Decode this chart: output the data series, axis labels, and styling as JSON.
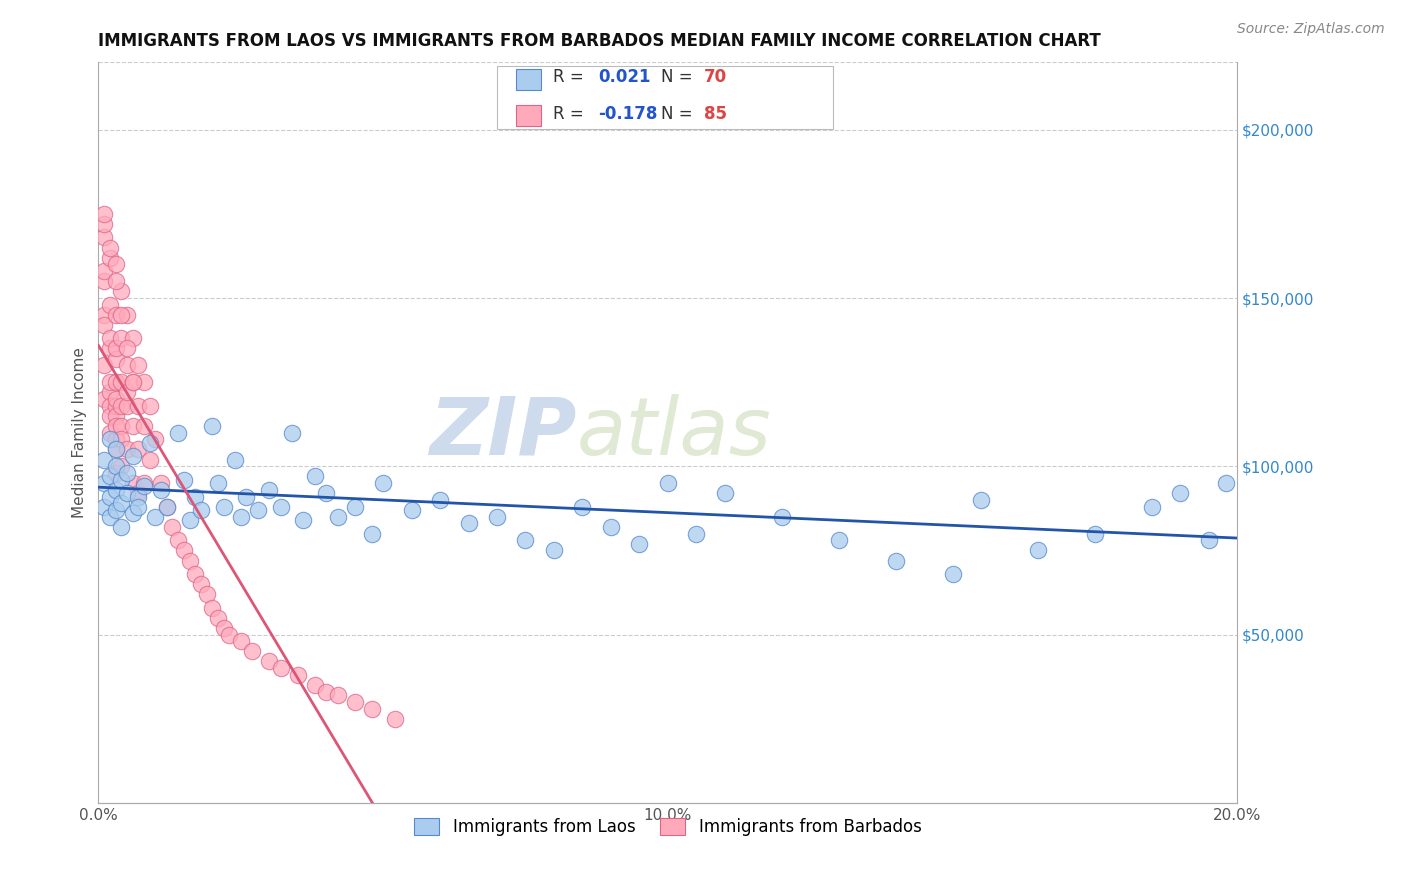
{
  "title": "IMMIGRANTS FROM LAOS VS IMMIGRANTS FROM BARBADOS MEDIAN FAMILY INCOME CORRELATION CHART",
  "source_text": "Source: ZipAtlas.com",
  "ylabel": "Median Family Income",
  "xlim": [
    0.0,
    0.2
  ],
  "ylim": [
    0,
    220000
  ],
  "xticks": [
    0.0,
    0.05,
    0.1,
    0.15,
    0.2
  ],
  "xticklabels": [
    "0.0%",
    "",
    "10.0%",
    "",
    "20.0%"
  ],
  "ytick_positions": [
    50000,
    100000,
    150000,
    200000
  ],
  "ytick_labels": [
    "$50,000",
    "$100,000",
    "$150,000",
    "$200,000"
  ],
  "series_laos": {
    "color": "#aaccee",
    "edge_color": "#5588cc",
    "label": "Immigrants from Laos"
  },
  "series_barbados": {
    "color": "#ffaabb",
    "edge_color": "#dd6688",
    "label": "Immigrants from Barbados"
  },
  "legend_R_laos": "0.021",
  "legend_N_laos": "70",
  "legend_R_barbados": "-0.178",
  "legend_N_barbados": "85",
  "watermark_zip": "ZIP",
  "watermark_atlas": "atlas",
  "background_color": "#ffffff",
  "laos_x": [
    0.001,
    0.001,
    0.001,
    0.002,
    0.002,
    0.002,
    0.002,
    0.003,
    0.003,
    0.003,
    0.003,
    0.004,
    0.004,
    0.004,
    0.005,
    0.005,
    0.006,
    0.006,
    0.007,
    0.007,
    0.008,
    0.009,
    0.01,
    0.011,
    0.012,
    0.014,
    0.015,
    0.016,
    0.017,
    0.018,
    0.02,
    0.021,
    0.022,
    0.024,
    0.025,
    0.026,
    0.028,
    0.03,
    0.032,
    0.034,
    0.036,
    0.038,
    0.04,
    0.042,
    0.045,
    0.048,
    0.05,
    0.055,
    0.06,
    0.065,
    0.07,
    0.075,
    0.08,
    0.085,
    0.09,
    0.095,
    0.1,
    0.105,
    0.11,
    0.12,
    0.13,
    0.14,
    0.15,
    0.155,
    0.165,
    0.175,
    0.185,
    0.19,
    0.195,
    0.198
  ],
  "laos_y": [
    95000,
    88000,
    102000,
    91000,
    97000,
    85000,
    108000,
    93000,
    87000,
    100000,
    105000,
    89000,
    96000,
    82000,
    92000,
    98000,
    86000,
    103000,
    91000,
    88000,
    94000,
    107000,
    85000,
    93000,
    88000,
    110000,
    96000,
    84000,
    91000,
    87000,
    112000,
    95000,
    88000,
    102000,
    85000,
    91000,
    87000,
    93000,
    88000,
    110000,
    84000,
    97000,
    92000,
    85000,
    88000,
    80000,
    95000,
    87000,
    90000,
    83000,
    85000,
    78000,
    75000,
    88000,
    82000,
    77000,
    95000,
    80000,
    92000,
    85000,
    78000,
    72000,
    68000,
    90000,
    75000,
    80000,
    88000,
    92000,
    78000,
    95000
  ],
  "barbados_x": [
    0.001,
    0.001,
    0.001,
    0.001,
    0.001,
    0.001,
    0.001,
    0.001,
    0.002,
    0.002,
    0.002,
    0.002,
    0.002,
    0.002,
    0.002,
    0.002,
    0.002,
    0.003,
    0.003,
    0.003,
    0.003,
    0.003,
    0.003,
    0.003,
    0.003,
    0.003,
    0.003,
    0.003,
    0.003,
    0.004,
    0.004,
    0.004,
    0.004,
    0.004,
    0.004,
    0.004,
    0.005,
    0.005,
    0.005,
    0.005,
    0.005,
    0.006,
    0.006,
    0.006,
    0.006,
    0.007,
    0.007,
    0.007,
    0.007,
    0.008,
    0.008,
    0.008,
    0.009,
    0.009,
    0.01,
    0.011,
    0.012,
    0.013,
    0.014,
    0.015,
    0.016,
    0.017,
    0.018,
    0.019,
    0.02,
    0.021,
    0.022,
    0.023,
    0.025,
    0.027,
    0.03,
    0.032,
    0.035,
    0.038,
    0.04,
    0.042,
    0.045,
    0.048,
    0.052,
    0.001,
    0.002,
    0.003,
    0.004,
    0.005,
    0.006
  ],
  "barbados_y": [
    168000,
    155000,
    172000,
    145000,
    130000,
    158000,
    142000,
    120000,
    162000,
    148000,
    135000,
    122000,
    110000,
    118000,
    125000,
    138000,
    115000,
    160000,
    145000,
    132000,
    118000,
    108000,
    125000,
    135000,
    115000,
    105000,
    120000,
    98000,
    112000,
    152000,
    138000,
    125000,
    112000,
    100000,
    118000,
    108000,
    145000,
    130000,
    118000,
    105000,
    122000,
    138000,
    125000,
    112000,
    95000,
    130000,
    118000,
    105000,
    92000,
    125000,
    112000,
    95000,
    118000,
    102000,
    108000,
    95000,
    88000,
    82000,
    78000,
    75000,
    72000,
    68000,
    65000,
    62000,
    58000,
    55000,
    52000,
    50000,
    48000,
    45000,
    42000,
    40000,
    38000,
    35000,
    33000,
    32000,
    30000,
    28000,
    25000,
    175000,
    165000,
    155000,
    145000,
    135000,
    125000
  ]
}
